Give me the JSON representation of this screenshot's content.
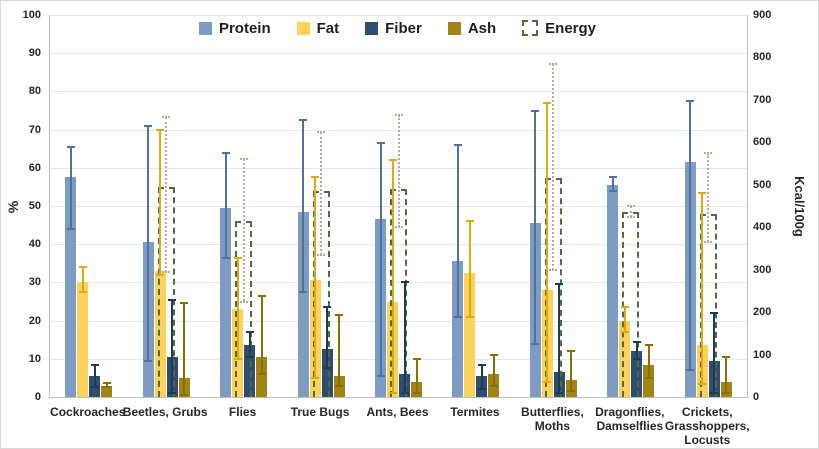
{
  "chart_data": {
    "type": "bar",
    "title": "",
    "legend_position": "top",
    "grid": true,
    "categories": [
      "Cockroaches",
      "Beetles, Grubs",
      "Flies",
      "True Bugs",
      "Ants,  Bees",
      "Termites",
      "Butterflies,\nMoths",
      "Dragonflies,\nDamselflies",
      "Crickets,\nGrasshoppers,\nLocusts"
    ],
    "left_axis": {
      "label": "%",
      "min": 0,
      "max": 100,
      "step": 10,
      "ticks": [
        0,
        10,
        20,
        30,
        40,
        50,
        60,
        70,
        80,
        90,
        100
      ]
    },
    "right_axis": {
      "label": "Kcal/100g",
      "min": 0,
      "max": 900,
      "step": 100,
      "ticks": [
        0,
        100,
        200,
        300,
        400,
        500,
        600,
        700,
        800,
        900
      ]
    },
    "series": [
      {
        "name": "Protein",
        "axis": "left",
        "style": "solid",
        "color": "#7E9CC2",
        "error_color": "#4E72A0",
        "values": [
          57.5,
          40.5,
          49.5,
          48.5,
          46.5,
          35.5,
          45.5,
          55.5,
          61.5
        ],
        "errors": [
          [
            44,
            65.5
          ],
          [
            9.5,
            71
          ],
          [
            36.5,
            64
          ],
          [
            27.5,
            72.5
          ],
          [
            5.5,
            66.5
          ],
          [
            21,
            66
          ],
          [
            14,
            75
          ],
          [
            54,
            57.5
          ],
          [
            7,
            77.5
          ]
        ]
      },
      {
        "name": "Fat",
        "axis": "left",
        "style": "solid",
        "color": "#FBD35B",
        "error_color": "#E0A912",
        "values": [
          30,
          33,
          23,
          30.5,
          25,
          32.5,
          28,
          20,
          13.5
        ],
        "errors": [
          [
            27.5,
            34
          ],
          [
            32,
            70
          ],
          [
            10,
            36.5
          ],
          [
            5,
            57.5
          ],
          [
            1,
            62
          ],
          [
            21,
            46
          ],
          [
            4,
            77
          ],
          [
            17,
            23.5
          ],
          [
            3.5,
            53.5
          ]
        ]
      },
      {
        "name": "Fiber",
        "axis": "left",
        "style": "solid",
        "color": "#2E4D6F",
        "error_color": "#1E3A57",
        "values": [
          5.5,
          10.5,
          13.5,
          12.5,
          6,
          5.5,
          6.5,
          12,
          9.5
        ],
        "errors": [
          [
            2.5,
            8.5
          ],
          [
            1,
            25.5
          ],
          [
            10.5,
            17
          ],
          [
            7.5,
            23.5
          ],
          [
            1,
            30
          ],
          [
            2,
            8.5
          ],
          [
            1,
            29.5
          ],
          [
            10,
            14.5
          ],
          [
            1,
            22
          ]
        ]
      },
      {
        "name": "Ash",
        "axis": "left",
        "style": "solid",
        "color": "#A28414",
        "error_color": "#8A6F00",
        "values": [
          3,
          5,
          10.5,
          5.5,
          4,
          6,
          4.5,
          8.5,
          4
        ],
        "errors": [
          [
            2.5,
            3.7
          ],
          [
            0.5,
            24.5
          ],
          [
            6,
            26.5
          ],
          [
            3,
            21.5
          ],
          [
            1,
            10
          ],
          [
            3,
            11
          ],
          [
            1.5,
            12
          ],
          [
            5,
            13.5
          ],
          [
            1,
            10.5
          ]
        ]
      },
      {
        "name": "Energy",
        "axis": "right",
        "style": "dashed-outline",
        "color": "#4F6B45",
        "error_color": "#B5AC93",
        "values": [
          null,
          495,
          415,
          485,
          490,
          null,
          515,
          435,
          430
        ],
        "errors": [
          null,
          [
            295,
            660
          ],
          [
            225,
            560
          ],
          [
            335,
            625
          ],
          [
            400,
            665
          ],
          null,
          [
            300,
            785
          ],
          [
            425,
            450
          ],
          [
            365,
            575
          ]
        ]
      }
    ]
  }
}
